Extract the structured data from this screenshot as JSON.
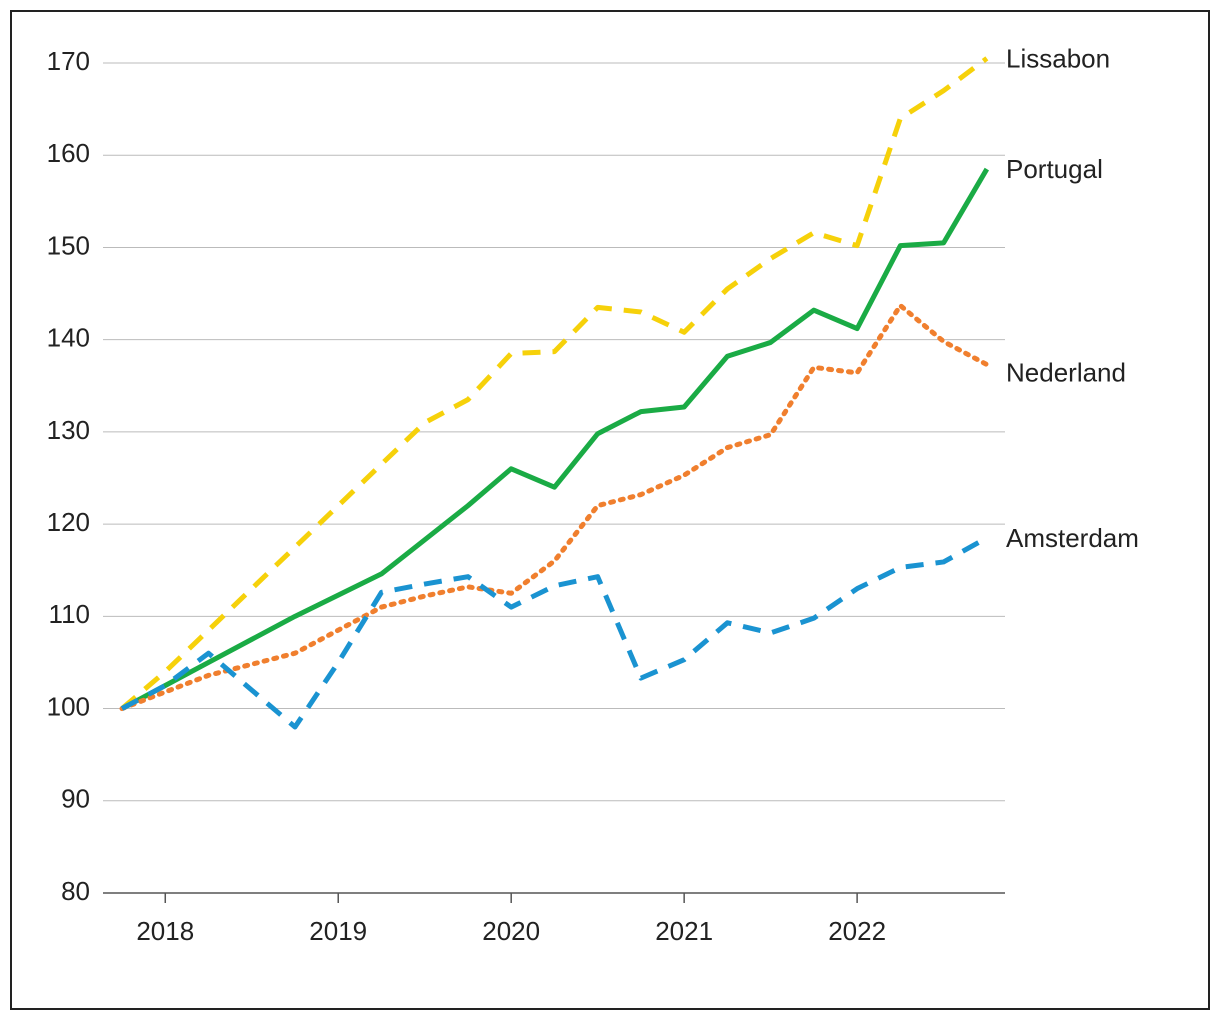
{
  "chart_data": {
    "type": "line",
    "x": [
      2017.75,
      2018,
      2018.25,
      2018.5,
      2018.75,
      2019,
      2019.25,
      2019.5,
      2019.75,
      2020,
      2020.25,
      2020.5,
      2020.75,
      2021,
      2021.25,
      2021.5,
      2021.75,
      2022,
      2022.25,
      2022.5,
      2022.75
    ],
    "xlim": [
      2017.64,
      2022.855
    ],
    "xticks": [
      2018,
      2019,
      2020,
      2021,
      2022
    ],
    "ylim": [
      80,
      170
    ],
    "yticks": [
      80,
      90,
      100,
      110,
      120,
      130,
      140,
      150,
      160,
      170
    ],
    "grid": true,
    "series": [
      {
        "name": "Lissabon",
        "color": "#f6d10a",
        "label_color": "#8c7a10",
        "style": "dashed",
        "values": [
          100,
          104,
          108.5,
          113,
          117.5,
          122,
          126.5,
          131,
          133.5,
          138.5,
          138.7,
          143.5,
          143,
          140.8,
          145.5,
          148.8,
          151.6,
          150.2,
          164,
          167,
          170.5
        ]
      },
      {
        "name": "Portugal",
        "color": "#1aab45",
        "label_color": "#1a9a40",
        "style": "solid",
        "values": [
          100,
          102.5,
          105,
          107.5,
          110,
          112.3,
          114.6,
          118.3,
          122,
          126,
          124,
          129.8,
          132.2,
          132.7,
          138.2,
          139.7,
          143.2,
          141.2,
          150.2,
          150.5,
          158.5
        ]
      },
      {
        "name": "Nederland",
        "color": "#f07f2e",
        "label_color": "#c85f1a",
        "style": "dotted",
        "values": [
          100,
          101.8,
          103.6,
          104.8,
          106,
          108.5,
          111,
          112.2,
          113.2,
          112.5,
          116,
          122,
          123.2,
          125.3,
          128.3,
          129.7,
          137,
          136.4,
          143.7,
          139.8,
          137.3
        ]
      },
      {
        "name": "Amsterdam",
        "color": "#1a93d1",
        "label_color": "#1a8ac8",
        "style": "dashed",
        "values": [
          100,
          102.5,
          106,
          102,
          98,
          105,
          112.6,
          113.5,
          114.3,
          111,
          113.3,
          114.3,
          103.3,
          105.3,
          109.3,
          108.2,
          109.8,
          113,
          115.3,
          115.9,
          118.5
        ]
      }
    ]
  }
}
